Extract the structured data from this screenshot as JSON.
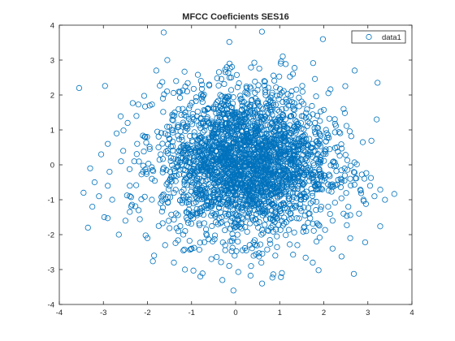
{
  "chart_data": {
    "type": "scatter",
    "title": "MFCC Coeficients SES16",
    "xlabel": "",
    "ylabel": "",
    "xlim": [
      -4,
      4
    ],
    "ylim": [
      -4,
      4
    ],
    "xticks": [
      -4,
      -3,
      -2,
      -1,
      0,
      1,
      2,
      3,
      4
    ],
    "yticks": [
      -4,
      -3,
      -2,
      -1,
      0,
      1,
      2,
      3,
      4
    ],
    "grid": false,
    "legend": {
      "placement": "top-right"
    },
    "series": [
      {
        "name": "data1",
        "marker": "circle",
        "color": "#0072BD",
        "x": [
          -3.55,
          -3.45,
          -3.35,
          -3.3,
          -3.25,
          -3.2,
          -3.1,
          -3.05,
          -2.98,
          -2.9,
          -2.86,
          -2.8,
          -2.7,
          -2.65,
          -2.55,
          -2.5,
          -2.45,
          -2.4,
          -2.3,
          -2.25,
          -2.2,
          -2.05,
          -2.0,
          -1.95,
          -1.9,
          -1.85,
          -1.8,
          -1.75,
          -1.7,
          -1.65,
          -1.6,
          -1.55,
          -1.52,
          -1.45,
          -1.4,
          -1.35,
          -1.3,
          -1.25,
          -1.2,
          -1.15,
          -1.1,
          -1.05,
          -1.0,
          -0.95,
          -0.9,
          -0.85,
          -0.8,
          -0.75,
          -0.7,
          -0.6,
          -0.55,
          -0.5,
          -0.45,
          -0.4,
          -0.35,
          -0.3,
          -0.2,
          -0.1,
          -0.05,
          0.0,
          0.05,
          0.1,
          0.15,
          0.25,
          0.35,
          0.45,
          0.5,
          0.6,
          0.65,
          0.7,
          0.8,
          0.9,
          1.0,
          1.05,
          1.1,
          1.2,
          1.25,
          1.3,
          1.4,
          1.5,
          1.6,
          1.7,
          1.75,
          1.8,
          1.9,
          1.98,
          2.05,
          2.1,
          2.2,
          2.3,
          2.45,
          2.6,
          2.7,
          2.9,
          3.05,
          3.15,
          3.2,
          3.22,
          -2.6,
          -2.1,
          -1.7,
          -1.2,
          -0.8,
          -0.3,
          0.2,
          0.7,
          1.1,
          1.6,
          2.0,
          2.4,
          2.8,
          -2.9,
          -2.4,
          -1.9,
          -1.4,
          -0.9,
          -0.4,
          0.1,
          0.6,
          1.2,
          1.7,
          2.2,
          2.6,
          -1.6,
          -1.1,
          -0.6,
          0.4,
          0.9,
          1.4,
          1.9,
          -0.2,
          0.3,
          0.8,
          1.3
        ],
        "y": [
          2.2,
          -0.8,
          -1.8,
          -0.1,
          -1.2,
          -0.5,
          -0.9,
          0.3,
          -1.5,
          0.6,
          -0.2,
          -1.0,
          0.9,
          -2.0,
          0.4,
          -1.6,
          1.2,
          -0.6,
          0.1,
          1.4,
          -1.3,
          0.8,
          -2.1,
          1.7,
          -0.4,
          -2.6,
          2.7,
          0.5,
          -1.1,
          1.9,
          -2.3,
          3.0,
          -0.7,
          1.0,
          -2.8,
          2.4,
          -1.9,
          0.2,
          1.6,
          -3.0,
          2.1,
          -0.3,
          -2.4,
          1.3,
          -1.4,
          0.7,
          -3.2,
          1.8,
          -0.9,
          2.3,
          -2.7,
          0.0,
          1.1,
          -1.7,
          2.0,
          -3.3,
          -0.5,
          2.5,
          -3.6,
          1.5,
          -2.2,
          0.6,
          -1.0,
          2.2,
          -2.9,
          1.9,
          -0.2,
          -3.4,
          2.4,
          0.9,
          -1.8,
          -2.6,
          2.0,
          -3.1,
          0.4,
          1.7,
          -1.4,
          2.6,
          -2.3,
          0.8,
          -1.9,
          0.3,
          -2.8,
          1.2,
          -0.7,
          3.6,
          1.0,
          -1.2,
          -2.4,
          0.5,
          1.6,
          -0.4,
          2.7,
          -1.0,
          -0.6,
          -0.9,
          1.3,
          2.35,
          0.1,
          -0.2,
          0.3,
          0.2,
          0.4,
          0.6,
          0.7,
          0.5,
          0.8,
          0.2,
          -0.3,
          -0.5,
          -1.4,
          -0.6,
          -0.9,
          -1.0,
          -0.8,
          -0.7,
          -0.5,
          -0.4,
          -0.6,
          -0.9,
          -1.1,
          -1.6,
          -2.1,
          0.9,
          1.1,
          1.2,
          1.0,
          1.3,
          1.1,
          0.6,
          0.0,
          -0.1,
          0.1,
          0.0
        ]
      }
    ]
  }
}
